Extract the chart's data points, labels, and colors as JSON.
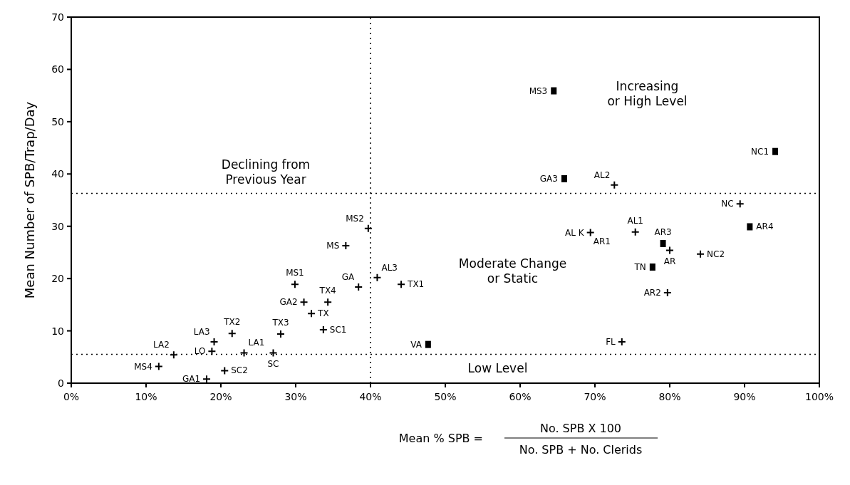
{
  "chart_data": {
    "type": "scatter",
    "xlabel": "Mean % SPB =",
    "ylabel": "Mean Number of SPB/Trap/Day",
    "xlim": [
      0,
      100
    ],
    "ylim": [
      0,
      70
    ],
    "xticks": [
      {
        "value": 0,
        "label": "0%"
      },
      {
        "value": 10,
        "label": "10%"
      },
      {
        "value": 20,
        "label": "20%"
      },
      {
        "value": 30,
        "label": "30%"
      },
      {
        "value": 40,
        "label": "40%"
      },
      {
        "value": 50,
        "label": "50%"
      },
      {
        "value": 60,
        "label": "60%"
      },
      {
        "value": 70,
        "label": "70%"
      },
      {
        "value": 80,
        "label": "80%"
      },
      {
        "value": 90,
        "label": "90%"
      },
      {
        "value": 100,
        "label": "100%"
      }
    ],
    "yticks": [
      0,
      10,
      20,
      30,
      40,
      50,
      60,
      70
    ],
    "grid": false,
    "series": [
      {
        "color": "#000000",
        "marker": "cross",
        "x": [
          11.7,
          18.1,
          20.5,
          13.7,
          18.8,
          19.1,
          21.5,
          23.1,
          27.0,
          28.0,
          33.7,
          32.1,
          31.1,
          34.3,
          29.9,
          38.4,
          40.9,
          44.1,
          36.7,
          39.7,
          72.6,
          89.4,
          69.4,
          75.4,
          80.0,
          84.1,
          79.7,
          73.6
        ],
        "values": [
          3.2,
          0.8,
          2.4,
          5.4,
          6.1,
          7.9,
          9.5,
          5.8,
          5.8,
          9.4,
          10.2,
          13.3,
          15.5,
          15.5,
          18.9,
          18.4,
          20.2,
          18.9,
          26.3,
          29.6,
          37.9,
          34.3,
          28.8,
          28.9,
          25.4,
          24.7,
          17.3,
          7.9
        ],
        "value_labels": [
          "MS4",
          "GA1",
          "SC2",
          "LA2",
          "LO",
          "LA3",
          "TX2",
          "LA1",
          "SC",
          "TX3",
          "SC1",
          "TX",
          "GA2",
          "TX4",
          "MS1",
          "GA",
          "AL3",
          "TX1",
          "MS",
          "MS2",
          "AL2",
          "NC",
          "AL K",
          "AL1",
          "AR",
          "NC2",
          "AR2",
          "FL"
        ]
      },
      {
        "color": "#000000",
        "marker": "square",
        "x": [
          64.5,
          65.9,
          94.1,
          90.7,
          79.1,
          77.7,
          47.7
        ],
        "values": [
          55.9,
          39.1,
          44.3,
          29.9,
          26.7,
          22.2,
          7.4
        ],
        "value_labels": [
          "MS3",
          "GA3",
          "NC1",
          "AR4",
          "AR3",
          "TN",
          "VA"
        ]
      }
    ],
    "ref_lines": [
      {
        "axis": "x",
        "value": 40,
        "line_style": "dotted",
        "color": "#000000"
      },
      {
        "axis": "y",
        "value": 36.3,
        "line_style": "dotted",
        "color": "#000000"
      },
      {
        "axis": "y",
        "value": 5.5,
        "line_style": "dotted",
        "color": "#000000"
      }
    ],
    "annotations": [
      "Declining from Previous Year",
      "Increasing or High Level",
      "Moderate Change or Static",
      "Low Level",
      {
        "text": "AR1",
        "x": 69.4,
        "y": 28.8
      },
      "No. SPB X 100",
      "No. SPB + No. Clerids"
    ]
  }
}
